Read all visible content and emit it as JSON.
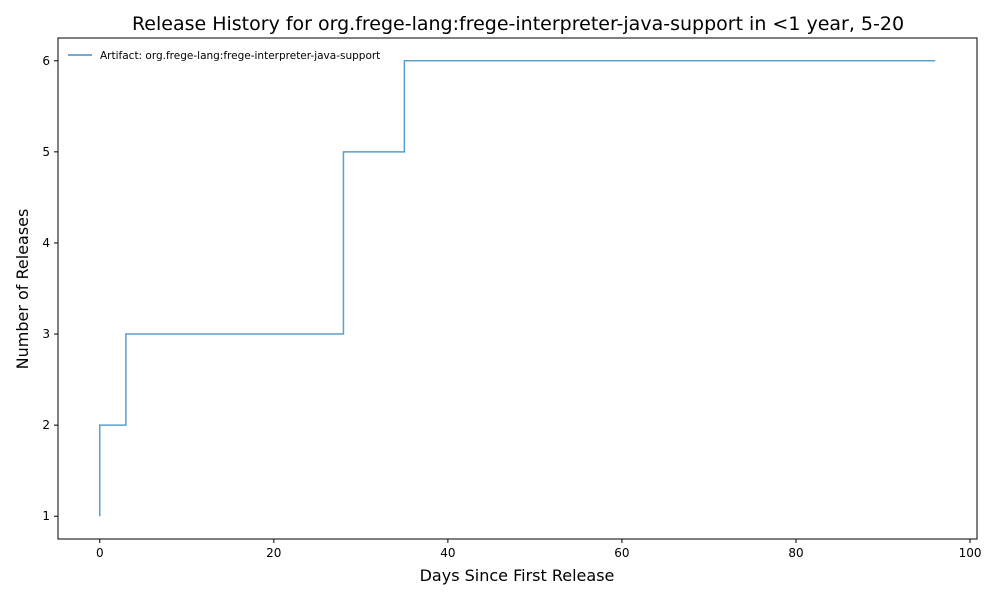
{
  "chart_data": {
    "type": "line",
    "title": "Release History for org.frege-lang:frege-interpreter-java-support in <1 year, 5-20",
    "xlabel": "Days Since First Release",
    "ylabel": "Number of Releases",
    "xlim": [
      -4.8,
      100.8
    ],
    "ylim": [
      0.75,
      6.25
    ],
    "xticks": [
      0,
      20,
      40,
      60,
      80,
      100
    ],
    "yticks": [
      1,
      2,
      3,
      4,
      5,
      6
    ],
    "grid": false,
    "legend_position": "top-left",
    "series": [
      {
        "name": "Artifact: org.frege-lang:frege-interpreter-java-support",
        "color": "#5b9fcf",
        "step": "post",
        "x": [
          0,
          0,
          3,
          28,
          35,
          96
        ],
        "y": [
          1,
          2,
          3,
          5,
          6,
          6
        ]
      }
    ]
  }
}
